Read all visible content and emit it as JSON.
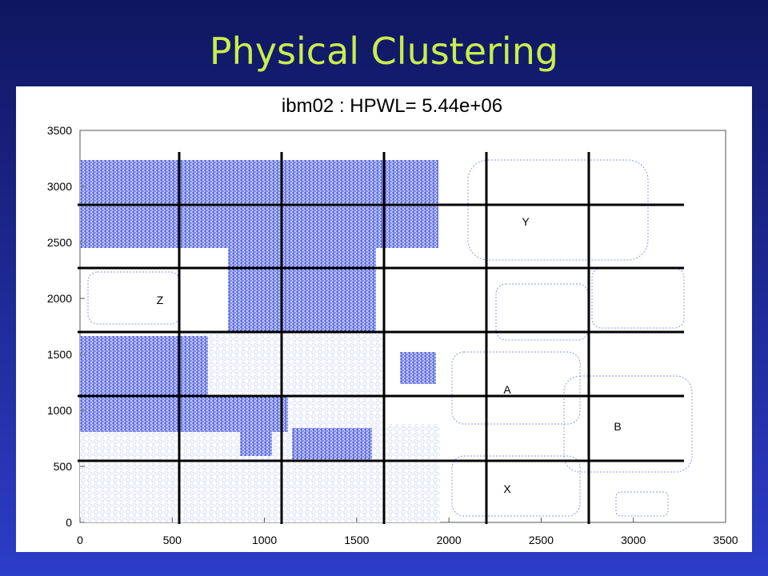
{
  "slide": {
    "title": "Physical Clustering"
  },
  "plot": {
    "title": "ibm02 : HPWL= 5.44e+06",
    "xticks": [
      0,
      500,
      1000,
      1500,
      2000,
      2500,
      3000,
      3500
    ],
    "yticks": [
      0,
      500,
      1000,
      1500,
      2000,
      2500,
      3000,
      3500
    ],
    "region_labels": [
      "Y",
      "Z",
      "A",
      "B",
      "X"
    ]
  }
}
